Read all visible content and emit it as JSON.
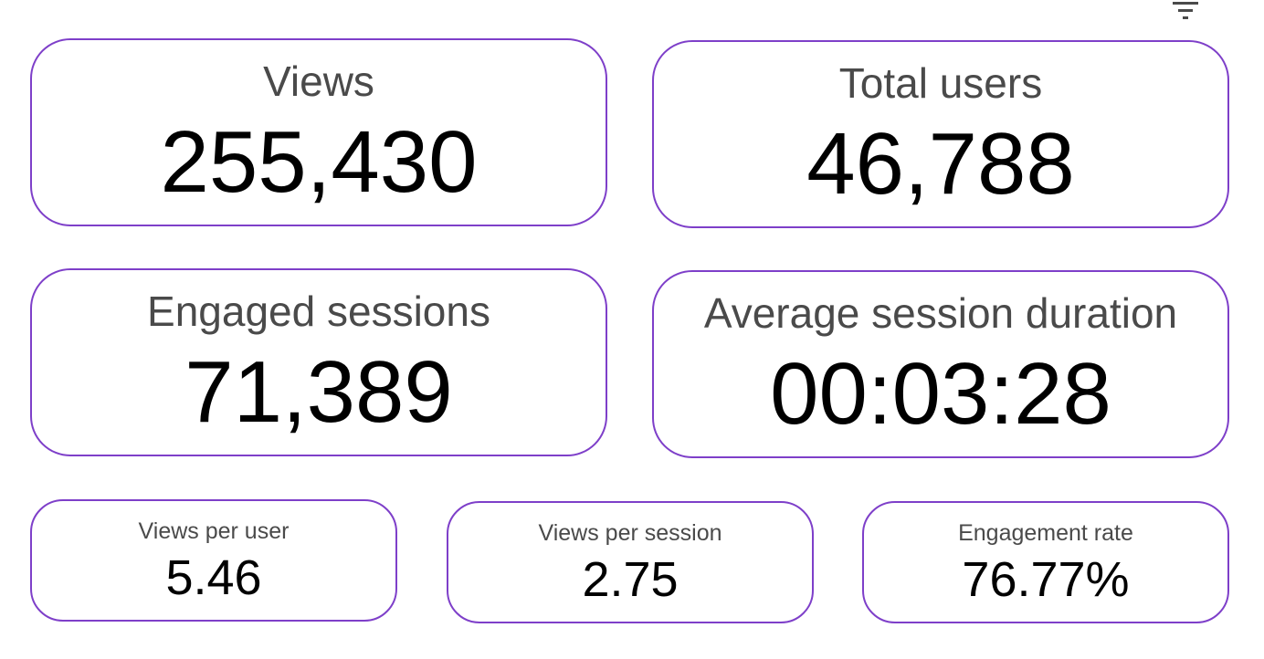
{
  "toolbar": {
    "filter_icon": "filter-list-icon"
  },
  "metrics": {
    "views": {
      "label": "Views",
      "value": "255,430"
    },
    "total_users": {
      "label": "Total users",
      "value": "46,788"
    },
    "engaged_sessions": {
      "label": "Engaged sessions",
      "value": "71,389"
    },
    "average_session_duration": {
      "label": "Average session duration",
      "value": "00:03:28"
    },
    "views_per_user": {
      "label": "Views per user",
      "value": "5.46"
    },
    "views_per_session": {
      "label": "Views per session",
      "value": "2.75"
    },
    "engagement_rate": {
      "label": "Engagement rate",
      "value": "76.77%"
    }
  },
  "colors": {
    "card_border": "#7e3fc9",
    "label_text": "#4a4a4a",
    "value_text": "#000000",
    "icon": "#4a4a4a"
  }
}
